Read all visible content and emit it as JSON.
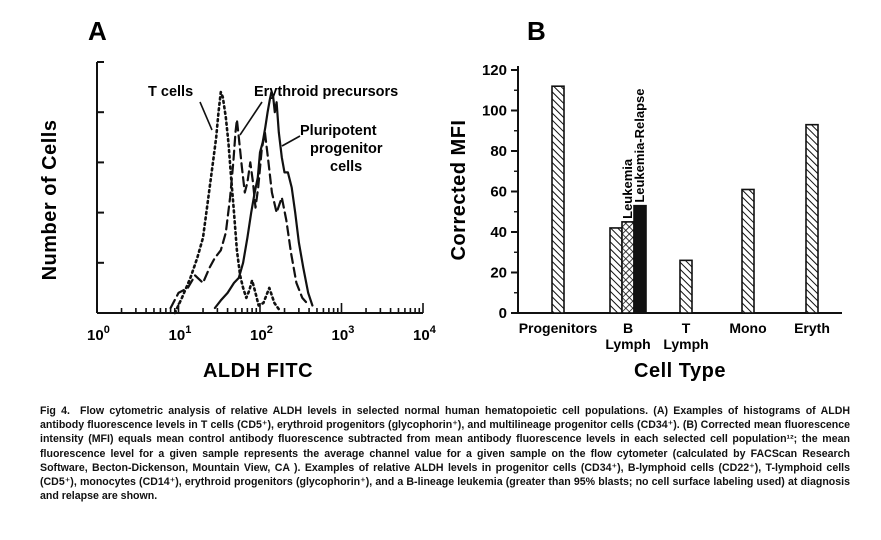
{
  "chart_data": [
    {
      "type": "line",
      "panel": "A",
      "xlabel": "ALDH FITC",
      "ylabel": "Number of Cells",
      "x_scale": "log",
      "xlim": [
        1,
        10000
      ],
      "x_ticks": [
        {
          "value": 1,
          "base": "10",
          "exp": "0"
        },
        {
          "value": 10,
          "base": "10",
          "exp": "1"
        },
        {
          "value": 100,
          "base": "10",
          "exp": "2"
        },
        {
          "value": 1000,
          "base": "10",
          "exp": "3"
        },
        {
          "value": 10000,
          "base": "10",
          "exp": "4"
        }
      ],
      "ylim": [
        0,
        100
      ],
      "series": [
        {
          "name": "T cells",
          "style": "dotted",
          "points": [
            [
              9,
              0
            ],
            [
              11,
              6
            ],
            [
              14,
              14
            ],
            [
              17,
              22
            ],
            [
              20,
              30
            ],
            [
              23,
              45
            ],
            [
              26,
              58
            ],
            [
              29,
              70
            ],
            [
              31,
              80
            ],
            [
              33,
              88
            ],
            [
              35,
              86
            ],
            [
              38,
              78
            ],
            [
              41,
              68
            ],
            [
              44,
              55
            ],
            [
              48,
              40
            ],
            [
              52,
              25
            ],
            [
              57,
              15
            ],
            [
              62,
              10
            ],
            [
              68,
              6
            ],
            [
              74,
              9
            ],
            [
              80,
              13
            ],
            [
              88,
              8
            ],
            [
              96,
              3
            ],
            [
              110,
              4
            ],
            [
              130,
              10
            ],
            [
              150,
              4
            ],
            [
              175,
              1
            ]
          ]
        },
        {
          "name": "Erythroid precursors",
          "style": "dashed",
          "points": [
            [
              8,
              2
            ],
            [
              10,
              8
            ],
            [
              13,
              10
            ],
            [
              16,
              15
            ],
            [
              20,
              12
            ],
            [
              24,
              18
            ],
            [
              28,
              22
            ],
            [
              33,
              25
            ],
            [
              38,
              32
            ],
            [
              43,
              46
            ],
            [
              47,
              60
            ],
            [
              50,
              72
            ],
            [
              52,
              77
            ],
            [
              55,
              70
            ],
            [
              60,
              58
            ],
            [
              65,
              48
            ],
            [
              70,
              52
            ],
            [
              76,
              60
            ],
            [
              82,
              52
            ],
            [
              88,
              42
            ],
            [
              95,
              50
            ],
            [
              105,
              65
            ],
            [
              115,
              72
            ],
            [
              125,
              62
            ],
            [
              140,
              48
            ],
            [
              160,
              40
            ],
            [
              185,
              46
            ],
            [
              210,
              37
            ],
            [
              240,
              24
            ],
            [
              280,
              12
            ],
            [
              330,
              6
            ],
            [
              400,
              3
            ]
          ]
        },
        {
          "name": "Pluripotent progenitor cells",
          "style": "solid",
          "points": [
            [
              28,
              2
            ],
            [
              33,
              5
            ],
            [
              40,
              8
            ],
            [
              48,
              12
            ],
            [
              55,
              14
            ],
            [
              62,
              20
            ],
            [
              70,
              30
            ],
            [
              78,
              40
            ],
            [
              86,
              48
            ],
            [
              94,
              54
            ],
            [
              100,
              64
            ],
            [
              108,
              68
            ],
            [
              116,
              74
            ],
            [
              124,
              80
            ],
            [
              132,
              85
            ],
            [
              138,
              88
            ],
            [
              145,
              86
            ],
            [
              152,
              80
            ],
            [
              160,
              84
            ],
            [
              170,
              72
            ],
            [
              185,
              62
            ],
            [
              200,
              56
            ],
            [
              220,
              56
            ],
            [
              245,
              50
            ],
            [
              270,
              40
            ],
            [
              300,
              28
            ],
            [
              340,
              18
            ],
            [
              390,
              8
            ],
            [
              440,
              3
            ]
          ]
        }
      ],
      "annotations": [
        "T cells",
        "Erythroid precursors",
        "Pluripotent",
        "progenitor",
        "cells"
      ]
    },
    {
      "type": "bar",
      "panel": "B",
      "xlabel": "Cell Type",
      "ylabel": "Corrected MFI",
      "ylim": [
        0,
        120
      ],
      "y_ticks": [
        0,
        20,
        40,
        60,
        80,
        100,
        120
      ],
      "categories": [
        {
          "line1": "Progenitors",
          "line2": ""
        },
        {
          "line1": "B",
          "line2": "Lymph"
        },
        {
          "line1": "T",
          "line2": "Lymph"
        },
        {
          "line1": "Mono",
          "line2": ""
        },
        {
          "line1": "Eryth",
          "line2": ""
        }
      ],
      "bars": [
        {
          "category": 0,
          "value": 112,
          "fill": "hatch",
          "label": ""
        },
        {
          "category": 1,
          "value": 42,
          "fill": "hatch",
          "label": ""
        },
        {
          "category": 1,
          "value": 45,
          "fill": "crosshatch",
          "label": "Leukemia"
        },
        {
          "category": 1,
          "value": 53,
          "fill": "solid",
          "label": "Leukemia-Relapse"
        },
        {
          "category": 2,
          "value": 26,
          "fill": "hatch",
          "label": ""
        },
        {
          "category": 3,
          "value": 61,
          "fill": "hatch",
          "label": ""
        },
        {
          "category": 4,
          "value": 93,
          "fill": "hatch",
          "label": ""
        }
      ]
    }
  ],
  "caption": {
    "fig_no": "Fig 4.",
    "text": "Flow cytometric analysis of relative ALDH levels in selected normal human hematopoietic cell populations. (A) Examples of histograms of ALDH antibody fluorescence levels in T cells (CD5⁺), erythroid progenitors (glycophorin⁺), and multilineage progenitor cells (CD34⁺). (B) Corrected mean fluorescence intensity (MFI) equals mean control antibody fluorescence subtracted from mean antibody fluorescence levels in each selected cell population¹²; the mean fluorescence level for a given sample represents the average channel value for a given sample on the flow cytometer (calculated by FACScan Research Software, Becton-Dickenson, Mountain View, CA ). Examples of relative ALDH levels in progenitor cells (CD34⁺), B-lymphoid cells (CD22⁺), T-lymphoid cells (CD5⁺), monocytes (CD14⁺), erythroid progenitors (glycophorin⁺), and a B-lineage leukemia (greater than 95% blasts; no cell surface labeling used) at diagnosis and relapse are shown."
  }
}
